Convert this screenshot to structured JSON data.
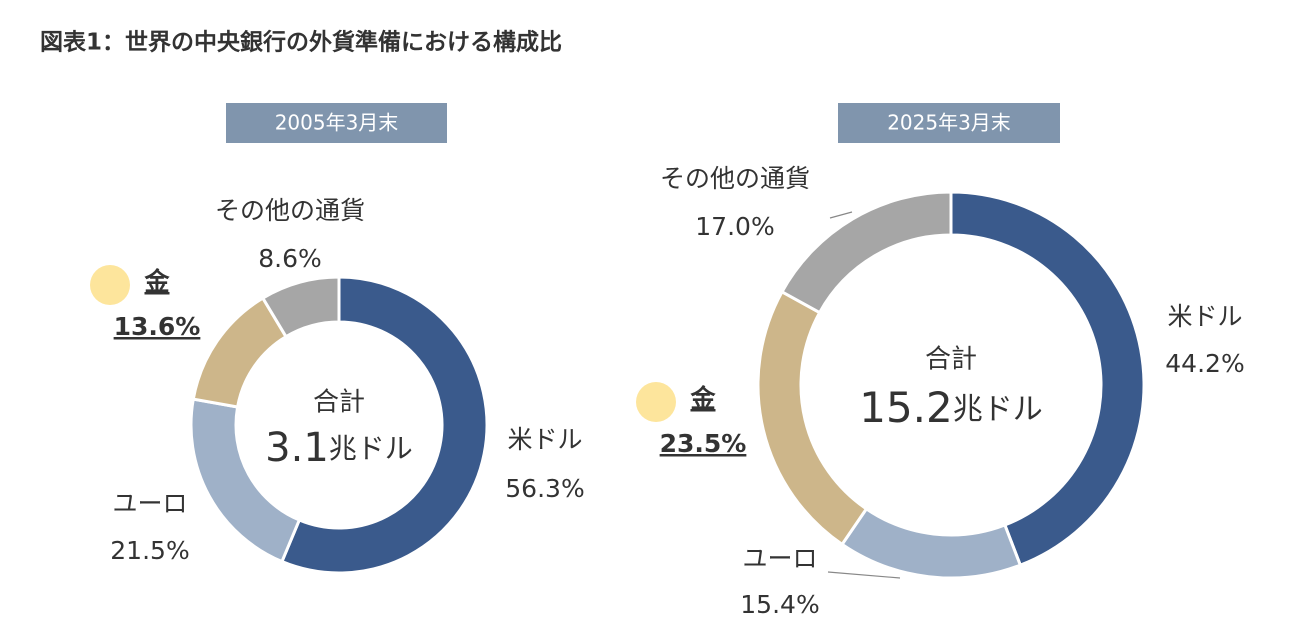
{
  "title": "図表1：世界の中央銀行の外貨準備における構成比",
  "chart_data": [
    {
      "type": "donut",
      "subtitle": "2005年3月末",
      "center_label": "合計",
      "total": 3.1,
      "total_unit": "兆ドル",
      "categories": [
        "米ドル",
        "ユーロ",
        "金",
        "その他の通貨"
      ],
      "values": [
        56.3,
        21.5,
        13.6,
        8.6
      ],
      "value_labels": [
        "56.3%",
        "21.5%",
        "13.6%",
        "8.6%"
      ],
      "colors": [
        "#3a5a8c",
        "#9fb1c8",
        "#cdb68a",
        "#a6a6a6"
      ]
    },
    {
      "type": "donut",
      "subtitle": "2025年3月末",
      "center_label": "合計",
      "total": 15.2,
      "total_unit": "兆ドル",
      "categories": [
        "米ドル",
        "ユーロ",
        "金",
        "その他の通貨"
      ],
      "values": [
        44.2,
        15.4,
        23.5,
        17.0
      ],
      "value_labels": [
        "44.2%",
        "15.4%",
        "23.5%",
        "17.0%"
      ],
      "colors": [
        "#3a5a8c",
        "#9fb1c8",
        "#cdb68a",
        "#a6a6a6"
      ]
    }
  ]
}
